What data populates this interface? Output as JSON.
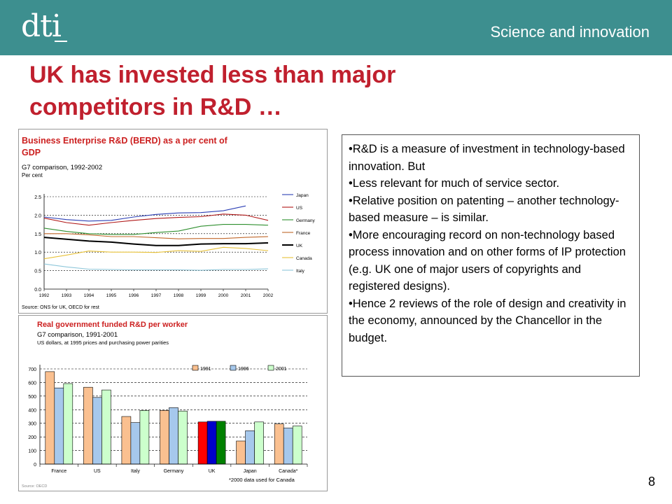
{
  "header": {
    "logo": "dti",
    "section": "Science and innovation"
  },
  "title": "UK has invested less than major competitors in R&D …",
  "page_number": "8",
  "colors": {
    "header": "#3d8f8f",
    "title": "#c0202e"
  },
  "bullets": [
    "•R&D is a measure of investment in technology-based innovation. But",
    "•Less relevant for much of service sector.",
    "•Relative position on patenting – another technology-based measure – is similar.",
    "•More encouraging record on non-technology based process innovation and on other forms of IP protection (e.g. UK one of major users of copyrights and registered designs).",
    "•Hence 2 reviews of the role of design and creativity in the economy, announced by the Chancellor in the budget."
  ],
  "chart_data": [
    {
      "type": "line",
      "title": "Business Enterprise R&D (BERD) as a per cent of GDP",
      "subtitle": "G7 comparison, 1992-2002",
      "ylabel": "Per cent",
      "source": "Source: ONS for UK, OECD for rest",
      "x": [
        "1992",
        "1993",
        "1994",
        "1995",
        "1996",
        "1997",
        "1998",
        "1999",
        "2000",
        "2001",
        "2002"
      ],
      "yticks": [
        "0.0",
        "0.5",
        "1.0",
        "1.5",
        "2.0",
        "2.5"
      ],
      "ylim": [
        0,
        2.5
      ],
      "grid": true,
      "legend": "right",
      "series": [
        {
          "name": "Japan",
          "color": "#2c3fb5",
          "values": [
            1.95,
            1.88,
            1.84,
            1.86,
            1.95,
            2.02,
            2.06,
            2.07,
            2.12,
            2.25,
            null
          ]
        },
        {
          "name": "US",
          "color": "#b01818",
          "values": [
            1.92,
            1.8,
            1.73,
            1.8,
            1.86,
            1.91,
            1.94,
            1.96,
            2.03,
            2.0,
            1.86
          ]
        },
        {
          "name": "Germany",
          "color": "#2f8f2f",
          "values": [
            1.65,
            1.56,
            1.5,
            1.48,
            1.48,
            1.53,
            1.57,
            1.7,
            1.75,
            1.75,
            1.73
          ]
        },
        {
          "name": "France",
          "color": "#c0672a",
          "values": [
            1.5,
            1.5,
            1.47,
            1.42,
            1.42,
            1.39,
            1.36,
            1.37,
            1.37,
            1.4,
            1.42
          ]
        },
        {
          "name": "UK",
          "color": "#000000",
          "values": [
            1.4,
            1.35,
            1.3,
            1.27,
            1.22,
            1.18,
            1.18,
            1.22,
            1.23,
            1.23,
            1.25
          ]
        },
        {
          "name": "Canada",
          "color": "#e8c23a",
          "values": [
            0.82,
            0.92,
            1.03,
            1.0,
            1.0,
            0.99,
            1.04,
            1.02,
            1.13,
            1.1,
            1.04
          ]
        },
        {
          "name": "Italy",
          "color": "#8ec7da",
          "values": [
            0.68,
            0.6,
            0.54,
            0.53,
            0.52,
            0.52,
            0.52,
            0.51,
            0.53,
            0.53,
            0.55
          ]
        }
      ]
    },
    {
      "type": "bar",
      "title": "Real government funded R&D per worker",
      "subtitle": "G7 comparison, 1991-2001",
      "ylabel": "US dollars, at 1995 prices and purchasing power parities",
      "source": "Source: OECD",
      "note": "*2000 data used for Canada",
      "categories": [
        "France",
        "US",
        "Italy",
        "Germany",
        "UK",
        "Japan",
        "Canada*"
      ],
      "yticks": [
        "0",
        "100",
        "200",
        "300",
        "400",
        "500",
        "600",
        "700"
      ],
      "ylim": [
        0,
        700
      ],
      "grid": true,
      "legend": "top",
      "series": [
        {
          "name": "1991",
          "color": "#fac090",
          "values": [
            680,
            565,
            350,
            395,
            310,
            170,
            295
          ]
        },
        {
          "name": "1996",
          "color": "#a6c8ec",
          "values": [
            560,
            490,
            305,
            415,
            315,
            245,
            265
          ]
        },
        {
          "name": "2001",
          "color": "#ccffcc",
          "values": [
            592,
            545,
            395,
            390,
            315,
            310,
            280
          ]
        }
      ],
      "highlight": {
        "category": "UK",
        "colors": [
          "#ff0000",
          "#0000cc",
          "#008000"
        ]
      }
    }
  ]
}
